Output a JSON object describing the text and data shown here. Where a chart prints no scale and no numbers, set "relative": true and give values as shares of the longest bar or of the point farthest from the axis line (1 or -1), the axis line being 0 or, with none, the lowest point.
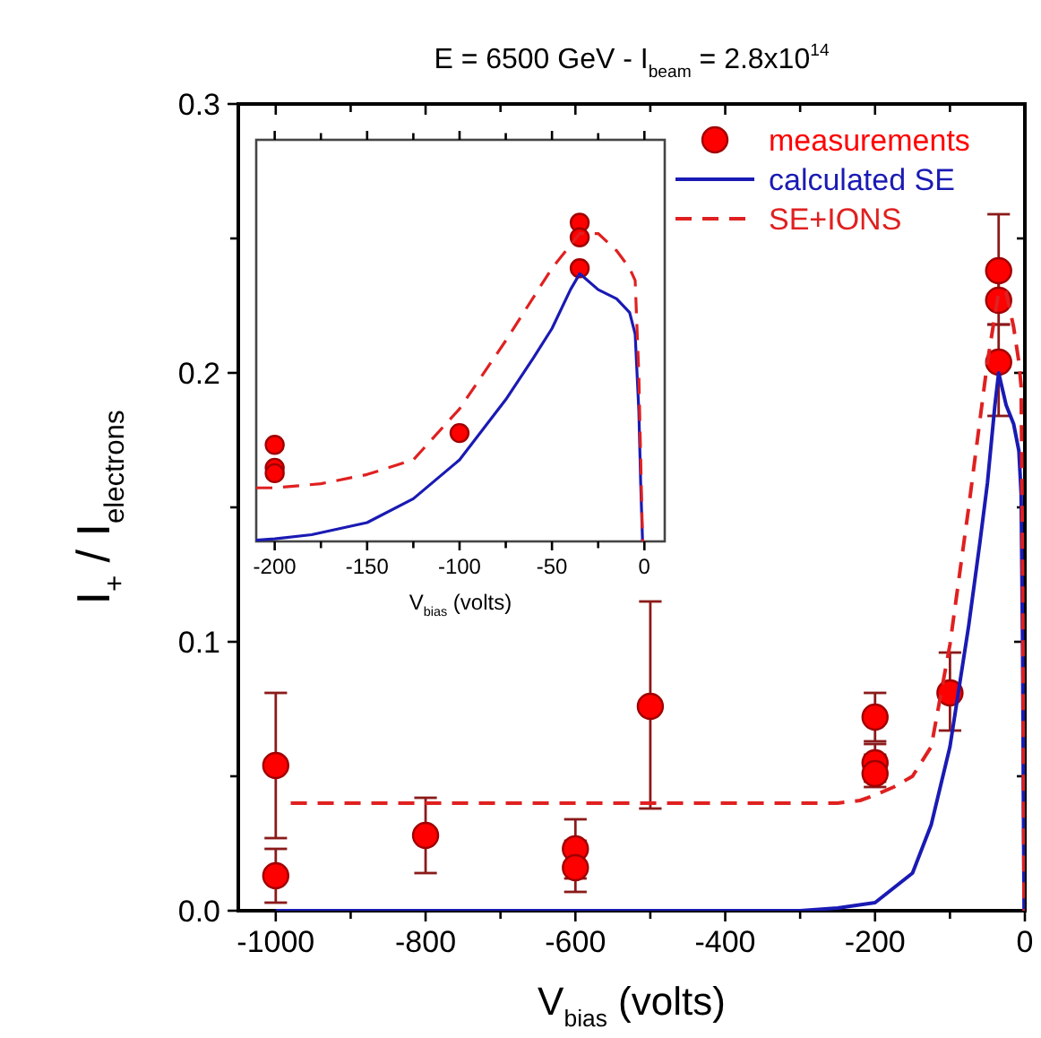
{
  "chart_data": [
    {
      "type": "scatter",
      "title": "E = 6500 GeV - I$_{beam}$ = 2.8x10$^{14}$",
      "xlabel": "V$_{bias}$ (volts)",
      "ylabel": "I$_{+}$ / I$_{electrons}$",
      "xlim": [
        -1050,
        0
      ],
      "ylim": [
        0,
        0.3
      ],
      "xticks": [
        -1000,
        {
          "value": -900,
          "label": null
        },
        -800,
        {
          "value": -700,
          "label": null
        },
        -600,
        {
          "value": -500,
          "label": null
        },
        -400,
        {
          "value": -300,
          "label": null
        },
        -200,
        {
          "value": -100,
          "label": null
        },
        0
      ],
      "yticks": [
        {
          "value": 0,
          "label": "0.0"
        },
        {
          "value": 0.05,
          "label": null
        },
        0.1,
        {
          "value": 0.15,
          "label": null
        },
        0.2,
        {
          "value": 0.25,
          "label": null
        },
        0.3
      ],
      "legend": "top right",
      "series": [
        {
          "name": "measurements",
          "type": "scatter",
          "color": "#ff0000",
          "marker": "circle",
          "x": [
            -1000,
            -1000,
            -800,
            -600,
            -600,
            -500,
            -200,
            -200,
            -200,
            -100,
            -35,
            -35,
            -35
          ],
          "values": [
            0.054,
            0.013,
            0.028,
            0.023,
            0.016,
            0.076,
            0.072,
            0.055,
            0.051,
            0.081,
            0.238,
            0.227,
            0.204
          ],
          "errors": [
            [
              0.027,
              0.081
            ],
            [
              0.003,
              0.023
            ],
            [
              0.014,
              0.042
            ],
            [
              0.012,
              0.034
            ],
            [
              0.007,
              0.026
            ],
            [
              0.038,
              0.115
            ],
            [
              0.063,
              0.081
            ],
            [
              0.048,
              0.062
            ],
            [
              0.046,
              0.058
            ],
            [
              0.067,
              0.096
            ],
            [
              0.228,
              0.259
            ],
            [
              0.218,
              0.24
            ],
            [
              0.184,
              0.218
            ]
          ]
        },
        {
          "name": "calculated SE",
          "type": "line",
          "color": "#1a1ab4",
          "line_style": "solid",
          "x": [
            -1000,
            -300,
            -250,
            -200,
            -150,
            -125,
            -100,
            -75,
            -60,
            -50,
            -40,
            -35,
            -25,
            -15,
            -8,
            -5,
            -3,
            -2,
            -1
          ],
          "values": [
            0,
            0,
            0.001,
            0.003,
            0.014,
            0.032,
            0.061,
            0.106,
            0.137,
            0.159,
            0.188,
            0.2,
            0.188,
            0.181,
            0.171,
            0.155,
            0.097,
            0.043,
            0
          ]
        },
        {
          "name": "SE+IONS",
          "type": "line",
          "color": "#e02020",
          "line_style": "dashed",
          "x": [
            -980,
            -250,
            -220,
            -200,
            -175,
            -150,
            -125,
            -100,
            -75,
            -50,
            -35,
            -25,
            -15,
            -8,
            -5,
            -3,
            -1
          ],
          "values": [
            0.04,
            0.04,
            0.041,
            0.043,
            0.046,
            0.05,
            0.061,
            0.099,
            0.15,
            0.204,
            0.23,
            0.23,
            0.217,
            0.204,
            0.195,
            0.124,
            0
          ]
        }
      ]
    },
    {
      "type": "scatter",
      "xlabel": "V$_{bias}$ (volts)",
      "xlim": [
        -210,
        11
      ],
      "relative": true,
      "tick_labels": "x",
      "xticks": [
        -200,
        {
          "value": -175,
          "label": null
        },
        -150,
        {
          "value": -125,
          "label": null
        },
        -100,
        {
          "value": -75,
          "label": null
        },
        -50,
        {
          "value": -25,
          "label": null
        },
        0
      ],
      "series": [
        {
          "type": "scatter",
          "color": "#ff0000",
          "marker": "circle",
          "x": [
            -200,
            -200,
            -200,
            -100,
            -35,
            -35,
            -35
          ],
          "values": [
            0.303,
            0.231,
            0.214,
            0.34,
            1,
            0.954,
            0.857
          ]
        },
        {
          "type": "line",
          "color": "#1a1ab4",
          "line_style": "solid",
          "x": [
            -210,
            -200,
            -180,
            -150,
            -125,
            -100,
            -75,
            -60,
            -50,
            -40,
            -35,
            -25,
            -15,
            -8,
            -5,
            -3,
            -2,
            -1
          ],
          "values": [
            0.004,
            0.008,
            0.021,
            0.059,
            0.134,
            0.256,
            0.445,
            0.576,
            0.668,
            0.79,
            0.84,
            0.79,
            0.761,
            0.718,
            0.651,
            0.408,
            0.181,
            0
          ]
        },
        {
          "type": "line",
          "color": "#e02020",
          "line_style": "dashed",
          "x": [
            -210,
            -200,
            -175,
            -150,
            -125,
            -100,
            -75,
            -50,
            -35,
            -25,
            -15,
            -8,
            -5,
            -3,
            -1
          ],
          "values": [
            0.168,
            0.168,
            0.181,
            0.21,
            0.256,
            0.416,
            0.63,
            0.857,
            0.966,
            0.966,
            0.912,
            0.857,
            0.819,
            0.521,
            0
          ]
        }
      ]
    }
  ]
}
